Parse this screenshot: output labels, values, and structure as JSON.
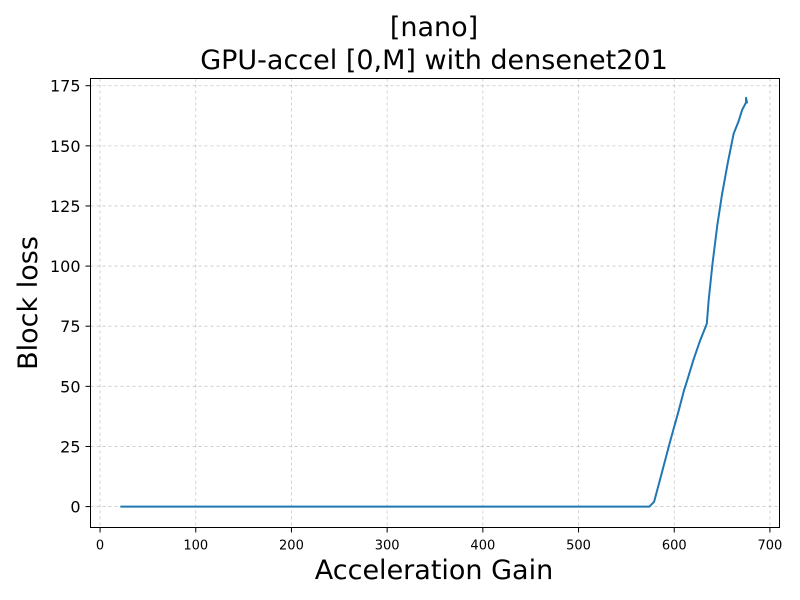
{
  "chart_data": {
    "type": "line",
    "title_line1": "[nano]",
    "title_line2": "GPU-accel [0,M] with densenet201",
    "xlabel": "Acceleration Gain",
    "ylabel": "Block loss",
    "xlim": [
      -10,
      710
    ],
    "ylim": [
      -8.7,
      178
    ],
    "xticks": [
      0,
      100,
      200,
      300,
      400,
      500,
      600,
      700
    ],
    "yticks": [
      0,
      25,
      50,
      75,
      100,
      125,
      150,
      175
    ],
    "grid": true,
    "series": [
      {
        "color": "#1f77b4",
        "x": [
          22,
          100,
          200,
          300,
          400,
          500,
          571,
          574,
          579,
          585,
          591,
          597,
          604,
          610,
          614,
          620,
          627,
          634,
          636,
          640,
          645,
          650,
          656,
          662,
          667,
          671,
          675,
          675,
          676
        ],
        "y": [
          0,
          0,
          0,
          0,
          0,
          0,
          0,
          0,
          2,
          11,
          20,
          29,
          39,
          48,
          53,
          61,
          69,
          76,
          86,
          101,
          117,
          130,
          143,
          155,
          160,
          165,
          168,
          170,
          168
        ]
      }
    ]
  }
}
